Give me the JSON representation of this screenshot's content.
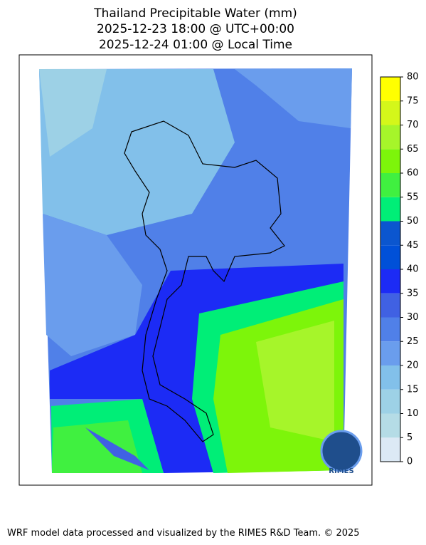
{
  "title_lines": [
    "Thailand Precipitable Water (mm)",
    "2025-12-23 18:00 @ UTC+00:00",
    "2025-12-24 01:00 @ Local Time"
  ],
  "colorbar": {
    "lim": [
      0,
      80
    ],
    "ticks": [
      0,
      5,
      10,
      15,
      20,
      25,
      30,
      35,
      40,
      45,
      50,
      55,
      60,
      65,
      70,
      75,
      80
    ],
    "colors": [
      "#dce9f5",
      "#b5dce6",
      "#9dd1e6",
      "#82c0ea",
      "#6a9ded",
      "#5080e8",
      "#4061e3",
      "#1c2bf5",
      "#0050d8",
      "#0b56cf",
      "#00ee77",
      "#40f040",
      "#7df50a",
      "#a6f52a",
      "#d4f71a",
      "#ffff00",
      "#ffcc00"
    ]
  },
  "logo": "RIMES",
  "footer": "WRF model data processed and visualized by the RIMES R&D Team. © 2025"
}
